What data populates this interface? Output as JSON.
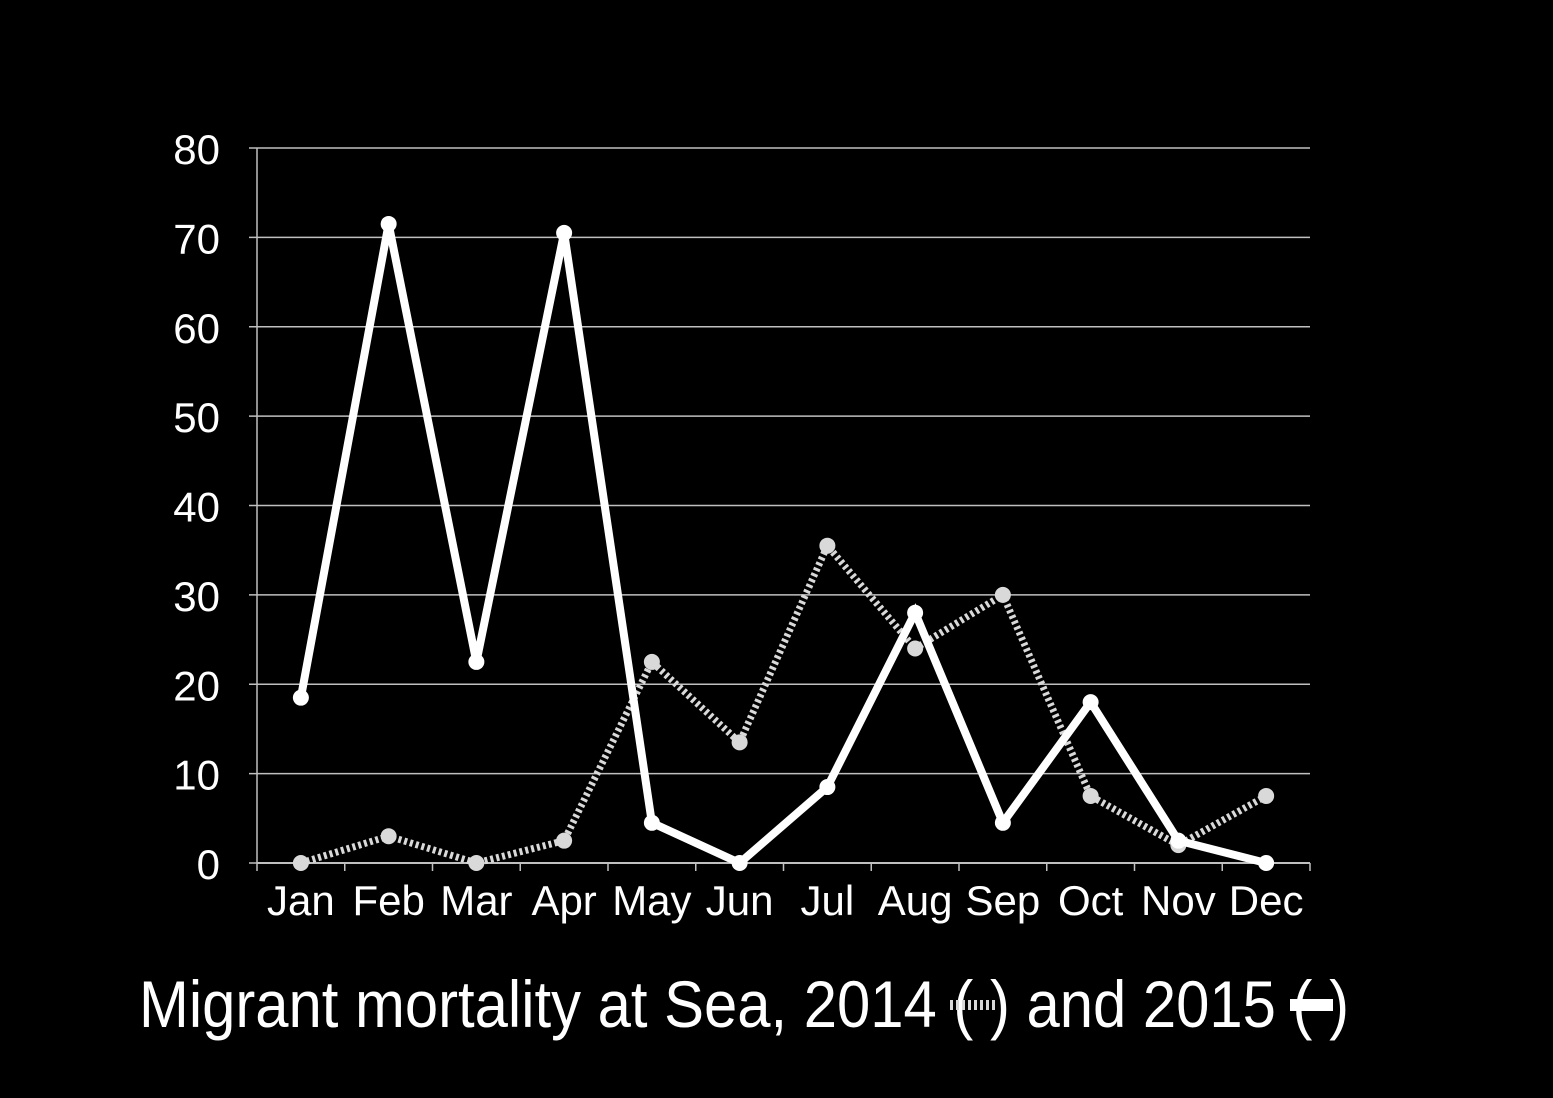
{
  "chart_data": {
    "type": "line",
    "title_parts": {
      "before": "Migrant mortality at Sea, 2014 (",
      "middle": ") and 2015 (",
      "after": ")"
    },
    "categories": [
      "Jan",
      "Feb",
      "Mar",
      "Apr",
      "May",
      "Jun",
      "Jul",
      "Aug",
      "Sep",
      "Oct",
      "Nov",
      "Dec"
    ],
    "ylim": [
      0,
      80
    ],
    "yticks": [
      0,
      10,
      20,
      30,
      40,
      50,
      60,
      70,
      80
    ],
    "grid": true,
    "series": [
      {
        "name": "2014",
        "style": "dotted",
        "color": "#d9d9d9",
        "values": [
          0,
          3,
          0,
          2.5,
          22.5,
          13.5,
          35.5,
          24,
          30,
          7.5,
          2,
          7.5
        ]
      },
      {
        "name": "2015",
        "style": "solid",
        "color": "#ffffff",
        "values": [
          18.5,
          71.5,
          22.5,
          70.5,
          4.5,
          0,
          8.5,
          28,
          4.5,
          18,
          2.5,
          0
        ]
      }
    ]
  },
  "colors": {
    "background": "#000000",
    "text": "#ffffff",
    "grid": "#bfbfbf"
  }
}
